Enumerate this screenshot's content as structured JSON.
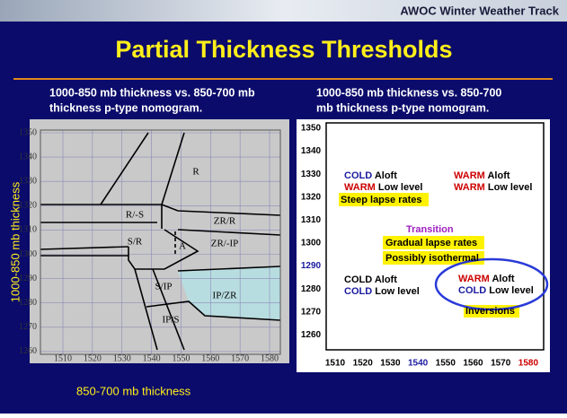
{
  "header": {
    "brand": "AWOC Winter Weather Track"
  },
  "title": "Partial Thickness Thresholds",
  "left": {
    "caption": [
      "1000-850 mb thickness vs. 850-700 mb",
      "thickness p-type nomogram."
    ],
    "yticks": [
      1350,
      1340,
      1330,
      1320,
      1310,
      1300,
      1290,
      1280,
      1270,
      1260
    ],
    "xticks": [
      1510,
      1520,
      1530,
      1540,
      1550,
      1560,
      1570,
      1580
    ],
    "regions": [
      "R",
      "R/-S",
      "ZR/R",
      "S/R",
      "A",
      "ZR/-IP",
      "S/IP",
      "IP/ZR",
      "IP/S"
    ],
    "ylabel": "1000-850 mb thickness",
    "xlabel": "850-700 mb thickness"
  },
  "right": {
    "caption": [
      "1000-850 mb thickness vs. 850-700",
      "mb thickness p-type nomogram."
    ],
    "yticks": [
      1350,
      1340,
      1330,
      1320,
      1310,
      1300,
      1290,
      1280,
      1270,
      1260
    ],
    "xticks": [
      1510,
      1520,
      1530,
      1540,
      1550,
      1560,
      1570,
      1580
    ],
    "notes": {
      "cold1": "COLD",
      "aloft1": " Aloft",
      "warm1": "WARM",
      "low1": " Low level",
      "steep": "Steep lapse rates",
      "warm2": "WARM",
      "aloft2": " Aloft",
      "warm3": "WARM",
      "low2": " Low level",
      "transition": "Transition",
      "gradual": "Gradual lapse rates",
      "iso": "Possibly isothermal",
      "cold3": "COLD",
      "aloft3": " Aloft",
      "cold4": "COLD",
      "low3": " Low level",
      "warm4": "WARM",
      "aloft4": " Aloft",
      "cold5": "COLD",
      "low4": " Low level",
      "inv": "Inversions"
    }
  }
}
